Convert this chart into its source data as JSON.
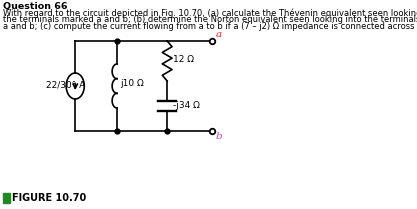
{
  "title_text": "Question 66",
  "description_lines": [
    "With regard to the circuit depicted in Fig. 10.70, (a) calculate the Thévenin equivalent seen looking into",
    "the terminals marked a and b; (b) determine the Norton equivalent seen looking into the terminals marke",
    "a and b; (c) compute the current flowing from a to b if a (7 – j2) Ω impedance is connected across them."
  ],
  "figure_label": "FIGURE 10.70",
  "source_label": "22/30° A",
  "inductor1_label": "j10 Ω",
  "resistor_label": "12 Ω",
  "capacitor_label": "-j34 Ω",
  "terminal_a": "a",
  "terminal_b": "b",
  "bg_color": "#ffffff",
  "line_color": "#000000",
  "terminal_color_a": "#ee2222",
  "terminal_color_b": "#cc44cc",
  "figure_marker_color": "#228822"
}
